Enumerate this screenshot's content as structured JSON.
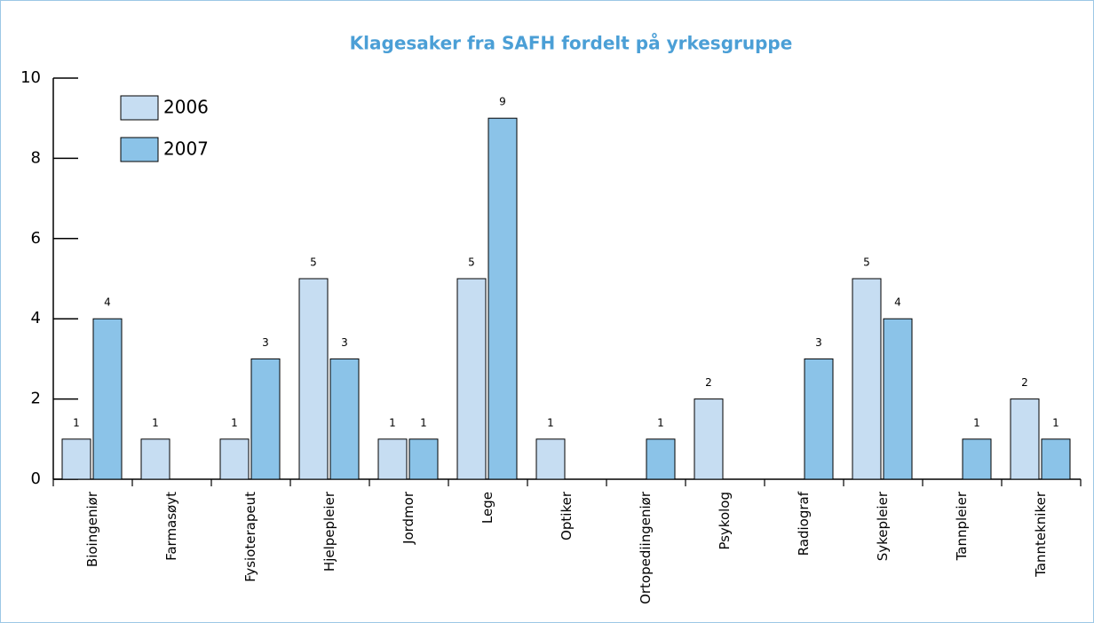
{
  "chart_data": {
    "type": "bar",
    "title": "Klagesaker fra SAFH fordelt på yrkesgruppe",
    "categories": [
      "Bioingeniør",
      "Farmasøyt",
      "Fysioterapeut",
      "Hjelpepleier",
      "Jordmor",
      "Lege",
      "Optiker",
      "Ortopediingeniør",
      "Psykolog",
      "Radiograf",
      "Sykepleier",
      "Tannpleier",
      "Tanntekniker"
    ],
    "series": [
      {
        "name": "2006",
        "color": "#c6ddf2",
        "values": [
          1,
          1,
          1,
          5,
          1,
          5,
          1,
          null,
          2,
          null,
          5,
          null,
          2
        ]
      },
      {
        "name": "2007",
        "color": "#8bc3e8",
        "values": [
          4,
          null,
          3,
          3,
          1,
          9,
          null,
          1,
          null,
          3,
          4,
          1,
          1
        ]
      }
    ],
    "ylim": [
      0,
      10
    ],
    "yticks": [
      0,
      2,
      4,
      6,
      8,
      10
    ],
    "legend": "upper left"
  }
}
